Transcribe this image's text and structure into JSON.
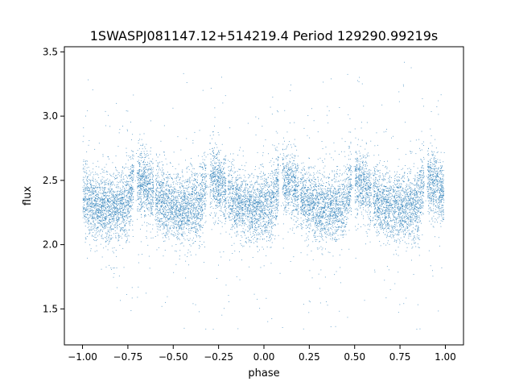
{
  "chart_data": {
    "type": "scatter",
    "title": "1SWASPJ081147.12+514219.4 Period 129290.99219s",
    "xlabel": "phase",
    "ylabel": "flux",
    "xlim": [
      -1.1,
      1.1
    ],
    "ylim": [
      1.22,
      3.54
    ],
    "xticks": [
      -1.0,
      -0.75,
      -0.5,
      -0.25,
      0.0,
      0.25,
      0.5,
      0.75,
      1.0
    ],
    "xtick_labels": [
      "−1.00",
      "−0.75",
      "−0.50",
      "−0.25",
      "0.00",
      "0.25",
      "0.50",
      "0.75",
      "1.00"
    ],
    "yticks": [
      1.5,
      2.0,
      2.5,
      3.0,
      3.5
    ],
    "ytick_labels": [
      "1.5",
      "2.0",
      "2.5",
      "3.0",
      "3.5"
    ],
    "grid": false,
    "marker_color": "#1f77b4",
    "x_range": [
      -1.0,
      1.0
    ],
    "y_range": [
      1.33,
      3.43
    ],
    "profile": {
      "phase": [
        0.0,
        0.04,
        0.08,
        0.12,
        0.16,
        0.2,
        0.25,
        0.3,
        0.35,
        0.4
      ],
      "median_flux": [
        2.31,
        2.3,
        2.5,
        2.5,
        2.45,
        2.38,
        2.32,
        2.29,
        2.28,
        2.3
      ],
      "spread": [
        0.17,
        0.17,
        0.16,
        0.15,
        0.15,
        0.15,
        0.15,
        0.15,
        0.15,
        0.16
      ]
    },
    "period_in_phase": 0.4,
    "gaps_phase": [
      [
        0.08,
        0.1
      ],
      [
        0.19,
        0.2
      ],
      [
        0.42,
        0.44
      ]
    ]
  }
}
